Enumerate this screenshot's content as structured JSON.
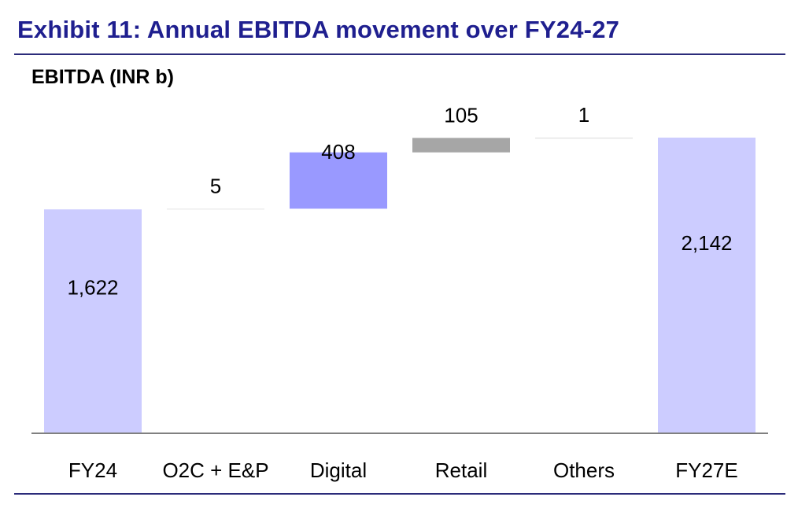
{
  "header": {
    "exhibit_title": "Exhibit 11: Annual EBITDA movement over FY24-27"
  },
  "chart_data": {
    "type": "bar",
    "subtype": "waterfall",
    "title": "Exhibit 11: Annual EBITDA movement over FY24-27",
    "ylabel": "EBITDA (INR b)",
    "categories": [
      "FY24",
      "O2C + E&P",
      "Digital",
      "Retail",
      "Others",
      "FY27E"
    ],
    "values": [
      1622,
      5,
      408,
      105,
      1,
      2142
    ],
    "labels": [
      "1,622",
      "5",
      "408",
      "105",
      "1",
      "2,142"
    ],
    "kinds": [
      "total",
      "delta",
      "delta",
      "delta",
      "delta",
      "total"
    ],
    "ylim": [
      0,
      2142
    ],
    "grid": false,
    "legend": "none",
    "colors": {
      "total": "#ccccff",
      "O2C + E&P": "#e6e6e6",
      "Digital": "#9999ff",
      "Retail": "#a6a6a6",
      "Others": "#d9d9d9",
      "axis": "#808080",
      "title": "#1f1f8f"
    }
  }
}
